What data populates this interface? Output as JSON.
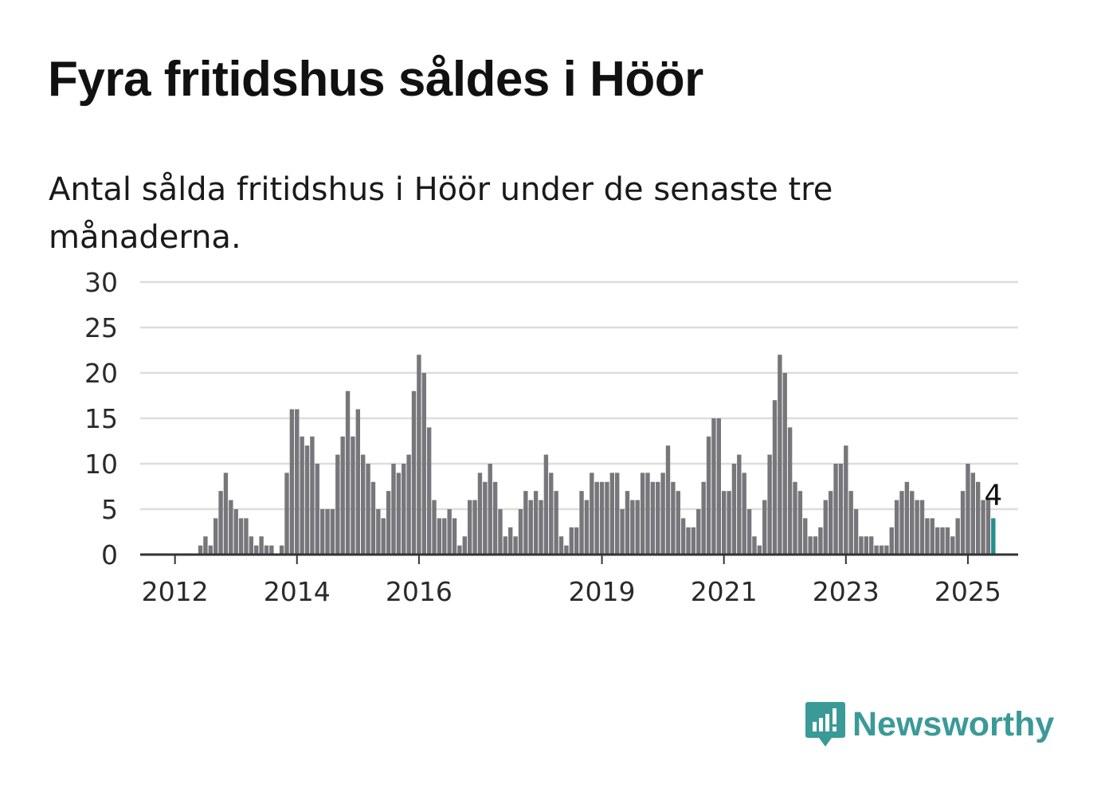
{
  "title": "Fyra fritidshus såldes i Höör",
  "subtitle": "Antal sålda fritidshus i Höör under de senaste tre månaderna.",
  "brand": {
    "name": "Newsworthy",
    "color": "#3a9a98",
    "icon": "newsworthy-logo-icon"
  },
  "colors": {
    "bar": "#77767b",
    "highlight": "#25908e",
    "grid": "#dddddd",
    "axis": "#333333"
  },
  "chart_data": {
    "type": "bar",
    "x_start": "2011-10",
    "x_interval": "month",
    "values": [
      0,
      0,
      0,
      0,
      0,
      0,
      0,
      0,
      1,
      2,
      1,
      4,
      7,
      9,
      6,
      5,
      4,
      4,
      2,
      1,
      2,
      1,
      1,
      0,
      1,
      9,
      16,
      16,
      13,
      12,
      13,
      10,
      5,
      5,
      5,
      11,
      13,
      18,
      13,
      16,
      11,
      10,
      8,
      5,
      4,
      7,
      10,
      9,
      10,
      11,
      18,
      22,
      20,
      14,
      6,
      4,
      4,
      5,
      4,
      1,
      2,
      6,
      6,
      9,
      8,
      10,
      8,
      5,
      2,
      3,
      2,
      5,
      7,
      6,
      7,
      6,
      11,
      9,
      7,
      2,
      1,
      3,
      3,
      7,
      6,
      9,
      8,
      8,
      8,
      9,
      9,
      5,
      7,
      6,
      6,
      9,
      9,
      8,
      8,
      9,
      12,
      8,
      7,
      4,
      3,
      3,
      5,
      8,
      13,
      15,
      15,
      7,
      7,
      10,
      11,
      9,
      5,
      2,
      1,
      6,
      11,
      17,
      22,
      20,
      14,
      8,
      7,
      4,
      2,
      2,
      3,
      6,
      7,
      10,
      10,
      12,
      7,
      5,
      2,
      2,
      2,
      1,
      1,
      1,
      3,
      6,
      7,
      8,
      7,
      6,
      6,
      4,
      4,
      3,
      3,
      3,
      2,
      4,
      7,
      10,
      9,
      8,
      6,
      6,
      4
    ],
    "highlight_last": true,
    "last_label": "4",
    "x_tick_labels": [
      "2012",
      "2014",
      "2016",
      "2019",
      "2021",
      "2023",
      "2025"
    ],
    "y_tick_labels": [
      "0",
      "5",
      "10",
      "15",
      "20",
      "25",
      "30"
    ],
    "ylim": [
      0,
      30
    ],
    "y_ticks": [
      0,
      5,
      10,
      15,
      20,
      25,
      30
    ],
    "grid": true,
    "title": "Fyra fritidshus såldes i Höör",
    "subtitle": "Antal sålda fritidshus i Höör under de senaste tre månaderna.",
    "xlabel": "",
    "ylabel": ""
  }
}
